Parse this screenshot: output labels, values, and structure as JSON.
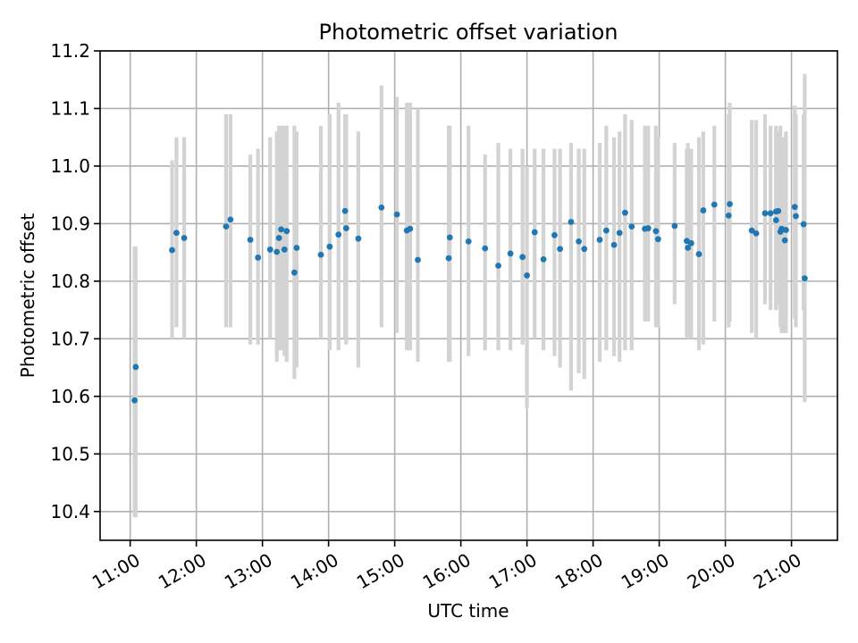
{
  "chart_data": {
    "type": "scatter",
    "title": "Photometric offset variation",
    "xlabel": "UTC time",
    "ylabel": "Photometric offset",
    "grid": true,
    "legend": "none",
    "marker_color": "#1f77b4",
    "errorbar_color": "#d3d3d3",
    "grid_color": "#b0b0b0",
    "spine_color": "#000000",
    "background_color": "#ffffff",
    "xlim_hours": [
      10.545,
      21.695
    ],
    "ylim": [
      10.35,
      11.2
    ],
    "x_tick_hours": [
      11,
      12,
      13,
      14,
      15,
      16,
      17,
      18,
      19,
      20,
      21
    ],
    "x_tick_labels": [
      "11:00",
      "12:00",
      "13:00",
      "14:00",
      "15:00",
      "16:00",
      "17:00",
      "18:00",
      "19:00",
      "20:00",
      "21:00"
    ],
    "y_ticks": [
      10.4,
      10.5,
      10.6,
      10.7,
      10.8,
      10.9,
      11.0,
      11.1,
      11.2
    ],
    "y_tick_labels": [
      "10.4",
      "10.5",
      "10.6",
      "10.7",
      "10.8",
      "10.9",
      "11.0",
      "11.1",
      "11.2"
    ],
    "points": [
      {
        "time": "11:04",
        "value": 10.593,
        "err_lo": 10.39,
        "err_hi": 10.86
      },
      {
        "time": "11:05",
        "value": 10.651,
        "err_lo": 10.39,
        "err_hi": 10.86
      },
      {
        "time": "11:38",
        "value": 10.854,
        "err_lo": 10.7,
        "err_hi": 11.01
      },
      {
        "time": "11:42",
        "value": 10.884,
        "err_lo": 10.72,
        "err_hi": 11.05
      },
      {
        "time": "11:49",
        "value": 10.875,
        "err_lo": 10.7,
        "err_hi": 11.05
      },
      {
        "time": "12:27",
        "value": 10.895,
        "err_lo": 10.72,
        "err_hi": 11.09
      },
      {
        "time": "12:31",
        "value": 10.907,
        "err_lo": 10.72,
        "err_hi": 11.09
      },
      {
        "time": "12:49",
        "value": 10.872,
        "err_lo": 10.69,
        "err_hi": 11.02
      },
      {
        "time": "12:56",
        "value": 10.841,
        "err_lo": 10.69,
        "err_hi": 11.03
      },
      {
        "time": "13:07",
        "value": 10.855,
        "err_lo": 10.7,
        "err_hi": 11.05
      },
      {
        "time": "13:13",
        "value": 10.851,
        "err_lo": 10.66,
        "err_hi": 11.06
      },
      {
        "time": "13:15",
        "value": 10.875,
        "err_lo": 10.68,
        "err_hi": 11.07
      },
      {
        "time": "13:17",
        "value": 10.89,
        "err_lo": 10.68,
        "err_hi": 11.07
      },
      {
        "time": "13:20",
        "value": 10.855,
        "err_lo": 10.67,
        "err_hi": 11.07
      },
      {
        "time": "13:22",
        "value": 10.887,
        "err_lo": 10.66,
        "err_hi": 11.07
      },
      {
        "time": "13:29",
        "value": 10.815,
        "err_lo": 10.63,
        "err_hi": 11.07
      },
      {
        "time": "13:31",
        "value": 10.858,
        "err_lo": 10.65,
        "err_hi": 11.06
      },
      {
        "time": "13:53",
        "value": 10.846,
        "err_lo": 10.7,
        "err_hi": 11.07
      },
      {
        "time": "14:01",
        "value": 10.86,
        "err_lo": 10.68,
        "err_hi": 11.09
      },
      {
        "time": "14:09",
        "value": 10.881,
        "err_lo": 10.68,
        "err_hi": 11.11
      },
      {
        "time": "14:15",
        "value": 10.922,
        "err_lo": 10.7,
        "err_hi": 11.09
      },
      {
        "time": "14:16",
        "value": 10.892,
        "err_lo": 10.69,
        "err_hi": 11.09
      },
      {
        "time": "14:27",
        "value": 10.874,
        "err_lo": 10.65,
        "err_hi": 11.06
      },
      {
        "time": "14:48",
        "value": 10.928,
        "err_lo": 10.72,
        "err_hi": 11.14
      },
      {
        "time": "15:02",
        "value": 10.916,
        "err_lo": 10.71,
        "err_hi": 11.12
      },
      {
        "time": "15:11",
        "value": 10.888,
        "err_lo": 10.68,
        "err_hi": 11.11
      },
      {
        "time": "15:14",
        "value": 10.891,
        "err_lo": 10.68,
        "err_hi": 11.11
      },
      {
        "time": "15:21",
        "value": 10.837,
        "err_lo": 10.66,
        "err_hi": 11.1
      },
      {
        "time": "15:49",
        "value": 10.84,
        "err_lo": 10.66,
        "err_hi": 11.07
      },
      {
        "time": "15:50",
        "value": 10.876,
        "err_lo": 10.66,
        "err_hi": 11.07
      },
      {
        "time": "16:07",
        "value": 10.869,
        "err_lo": 10.67,
        "err_hi": 11.07
      },
      {
        "time": "16:22",
        "value": 10.857,
        "err_lo": 10.68,
        "err_hi": 11.02
      },
      {
        "time": "16:34",
        "value": 10.827,
        "err_lo": 10.68,
        "err_hi": 11.04
      },
      {
        "time": "16:45",
        "value": 10.848,
        "err_lo": 10.68,
        "err_hi": 11.03
      },
      {
        "time": "16:56",
        "value": 10.842,
        "err_lo": 10.69,
        "err_hi": 11.03
      },
      {
        "time": "17:00",
        "value": 10.81,
        "err_lo": 10.58,
        "err_hi": 11.0
      },
      {
        "time": "17:07",
        "value": 10.885,
        "err_lo": 10.7,
        "err_hi": 11.03
      },
      {
        "time": "17:15",
        "value": 10.838,
        "err_lo": 10.68,
        "err_hi": 11.03
      },
      {
        "time": "17:25",
        "value": 10.88,
        "err_lo": 10.67,
        "err_hi": 11.03
      },
      {
        "time": "17:30",
        "value": 10.856,
        "err_lo": 10.65,
        "err_hi": 11.03
      },
      {
        "time": "17:40",
        "value": 10.903,
        "err_lo": 10.61,
        "err_hi": 11.04
      },
      {
        "time": "17:47",
        "value": 10.869,
        "err_lo": 10.64,
        "err_hi": 11.03
      },
      {
        "time": "17:52",
        "value": 10.856,
        "err_lo": 10.63,
        "err_hi": 11.03
      },
      {
        "time": "18:06",
        "value": 10.872,
        "err_lo": 10.66,
        "err_hi": 11.04
      },
      {
        "time": "18:12",
        "value": 10.888,
        "err_lo": 10.68,
        "err_hi": 11.07
      },
      {
        "time": "18:19",
        "value": 10.863,
        "err_lo": 10.67,
        "err_hi": 11.05
      },
      {
        "time": "18:24",
        "value": 10.884,
        "err_lo": 10.66,
        "err_hi": 11.06
      },
      {
        "time": "18:29",
        "value": 10.919,
        "err_lo": 10.68,
        "err_hi": 11.09
      },
      {
        "time": "18:35",
        "value": 10.895,
        "err_lo": 10.68,
        "err_hi": 11.08
      },
      {
        "time": "18:47",
        "value": 10.891,
        "err_lo": 10.73,
        "err_hi": 11.07
      },
      {
        "time": "18:50",
        "value": 10.892,
        "err_lo": 10.73,
        "err_hi": 11.07
      },
      {
        "time": "18:57",
        "value": 10.887,
        "err_lo": 10.72,
        "err_hi": 11.07
      },
      {
        "time": "18:59",
        "value": 10.873,
        "err_lo": 10.72,
        "err_hi": 11.05
      },
      {
        "time": "19:14",
        "value": 10.896,
        "err_lo": 10.76,
        "err_hi": 11.04
      },
      {
        "time": "19:25",
        "value": 10.87,
        "err_lo": 10.7,
        "err_hi": 11.03
      },
      {
        "time": "19:26",
        "value": 10.858,
        "err_lo": 10.7,
        "err_hi": 11.04
      },
      {
        "time": "19:29",
        "value": 10.866,
        "err_lo": 10.7,
        "err_hi": 11.03
      },
      {
        "time": "19:36",
        "value": 10.847,
        "err_lo": 10.68,
        "err_hi": 11.05
      },
      {
        "time": "19:40",
        "value": 10.923,
        "err_lo": 10.69,
        "err_hi": 11.06
      },
      {
        "time": "19:50",
        "value": 10.933,
        "err_lo": 10.73,
        "err_hi": 11.07
      },
      {
        "time": "20:03",
        "value": 10.914,
        "err_lo": 10.72,
        "err_hi": 11.09
      },
      {
        "time": "20:04",
        "value": 10.934,
        "err_lo": 10.73,
        "err_hi": 11.11
      },
      {
        "time": "20:24",
        "value": 10.888,
        "err_lo": 10.71,
        "err_hi": 11.08
      },
      {
        "time": "20:28",
        "value": 10.883,
        "err_lo": 10.7,
        "err_hi": 11.08
      },
      {
        "time": "20:36",
        "value": 10.918,
        "err_lo": 10.76,
        "err_hi": 11.09
      },
      {
        "time": "20:41",
        "value": 10.918,
        "err_lo": 10.75,
        "err_hi": 11.07
      },
      {
        "time": "20:46",
        "value": 10.921,
        "err_lo": 10.75,
        "err_hi": 11.06
      },
      {
        "time": "20:46",
        "value": 10.906,
        "err_lo": 10.75,
        "err_hi": 11.07
      },
      {
        "time": "20:48",
        "value": 10.922,
        "err_lo": 10.76,
        "err_hi": 11.06
      },
      {
        "time": "20:50",
        "value": 10.886,
        "err_lo": 10.72,
        "err_hi": 11.07
      },
      {
        "time": "20:51",
        "value": 10.891,
        "err_lo": 10.71,
        "err_hi": 11.05
      },
      {
        "time": "20:54",
        "value": 10.871,
        "err_lo": 10.71,
        "err_hi": 11.05
      },
      {
        "time": "20:55",
        "value": 10.889,
        "err_lo": 10.71,
        "err_hi": 11.06
      },
      {
        "time": "21:03",
        "value": 10.929,
        "err_lo": 10.735,
        "err_hi": 11.105
      },
      {
        "time": "21:04",
        "value": 10.913,
        "err_lo": 10.72,
        "err_hi": 11.09
      },
      {
        "time": "21:11",
        "value": 10.899,
        "err_lo": 10.75,
        "err_hi": 11.09
      },
      {
        "time": "21:12",
        "value": 10.805,
        "err_lo": 10.59,
        "err_hi": 11.16
      }
    ]
  }
}
